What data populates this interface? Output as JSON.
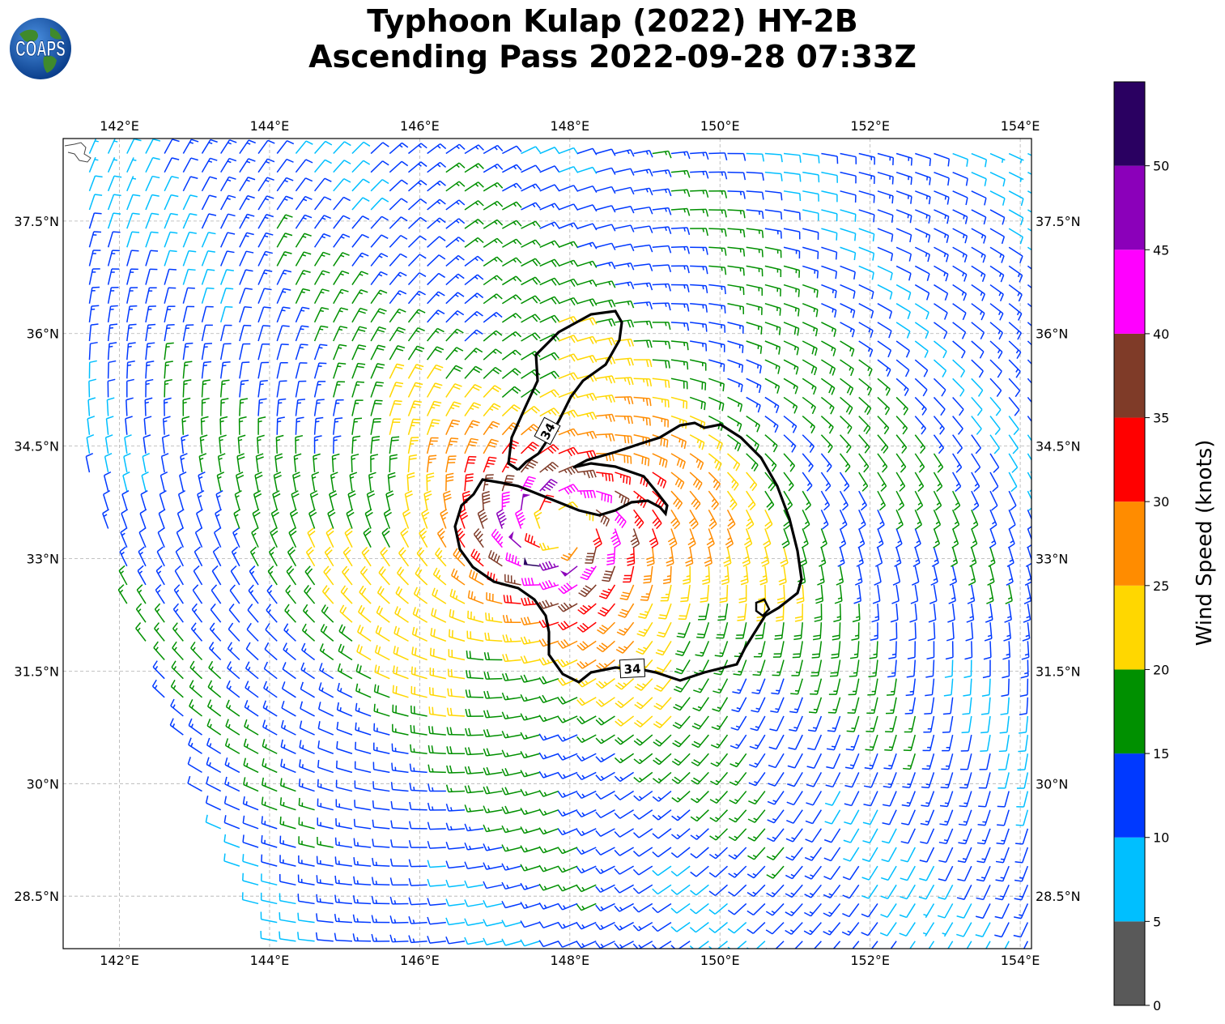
{
  "title": {
    "line1": "Typhoon Kulap (2022) HY-2B",
    "line2": "Ascending Pass 2022-09-28 07:33Z"
  },
  "logo": {
    "text": "COAPS",
    "icon": "globe-logo-icon"
  },
  "map": {
    "lon_range": [
      141.25,
      154.15
    ],
    "lat_range": [
      27.8,
      38.6
    ],
    "lon_ticks": [
      "142°E",
      "144°E",
      "146°E",
      "148°E",
      "150°E",
      "152°E",
      "154°E"
    ],
    "lon_tick_values": [
      142,
      144,
      146,
      148,
      150,
      152,
      154
    ],
    "lat_ticks": [
      "28.5°N",
      "30°N",
      "31.5°N",
      "33°N",
      "34.5°N",
      "36°N",
      "37.5°N"
    ],
    "lat_tick_values": [
      28.5,
      30,
      31.5,
      33,
      34.5,
      36,
      37.5
    ],
    "storm_center": {
      "lon": 147.9,
      "lat": 33.4
    },
    "gridlines": "on",
    "contour_label": "34",
    "contour_value_knots": 34
  },
  "colorbar": {
    "label": "Wind Speed (knots)",
    "ticks": [
      "0",
      "5",
      "10",
      "15",
      "20",
      "25",
      "30",
      "35",
      "40",
      "45",
      "50"
    ],
    "bins": [
      {
        "min": 0,
        "max": 5,
        "color": "#595959"
      },
      {
        "min": 5,
        "max": 10,
        "color": "#00bfff"
      },
      {
        "min": 10,
        "max": 15,
        "color": "#0039ff"
      },
      {
        "min": 15,
        "max": 20,
        "color": "#009000"
      },
      {
        "min": 20,
        "max": 25,
        "color": "#ffd700"
      },
      {
        "min": 25,
        "max": 30,
        "color": "#ff8c00"
      },
      {
        "min": 30,
        "max": 35,
        "color": "#ff0000"
      },
      {
        "min": 35,
        "max": 40,
        "color": "#7f3b28"
      },
      {
        "min": 40,
        "max": 45,
        "color": "#ff00ff"
      },
      {
        "min": 45,
        "max": 50,
        "color": "#8b00ba"
      },
      {
        "min": 50,
        "max": 55,
        "color": "#2a0061"
      }
    ]
  }
}
